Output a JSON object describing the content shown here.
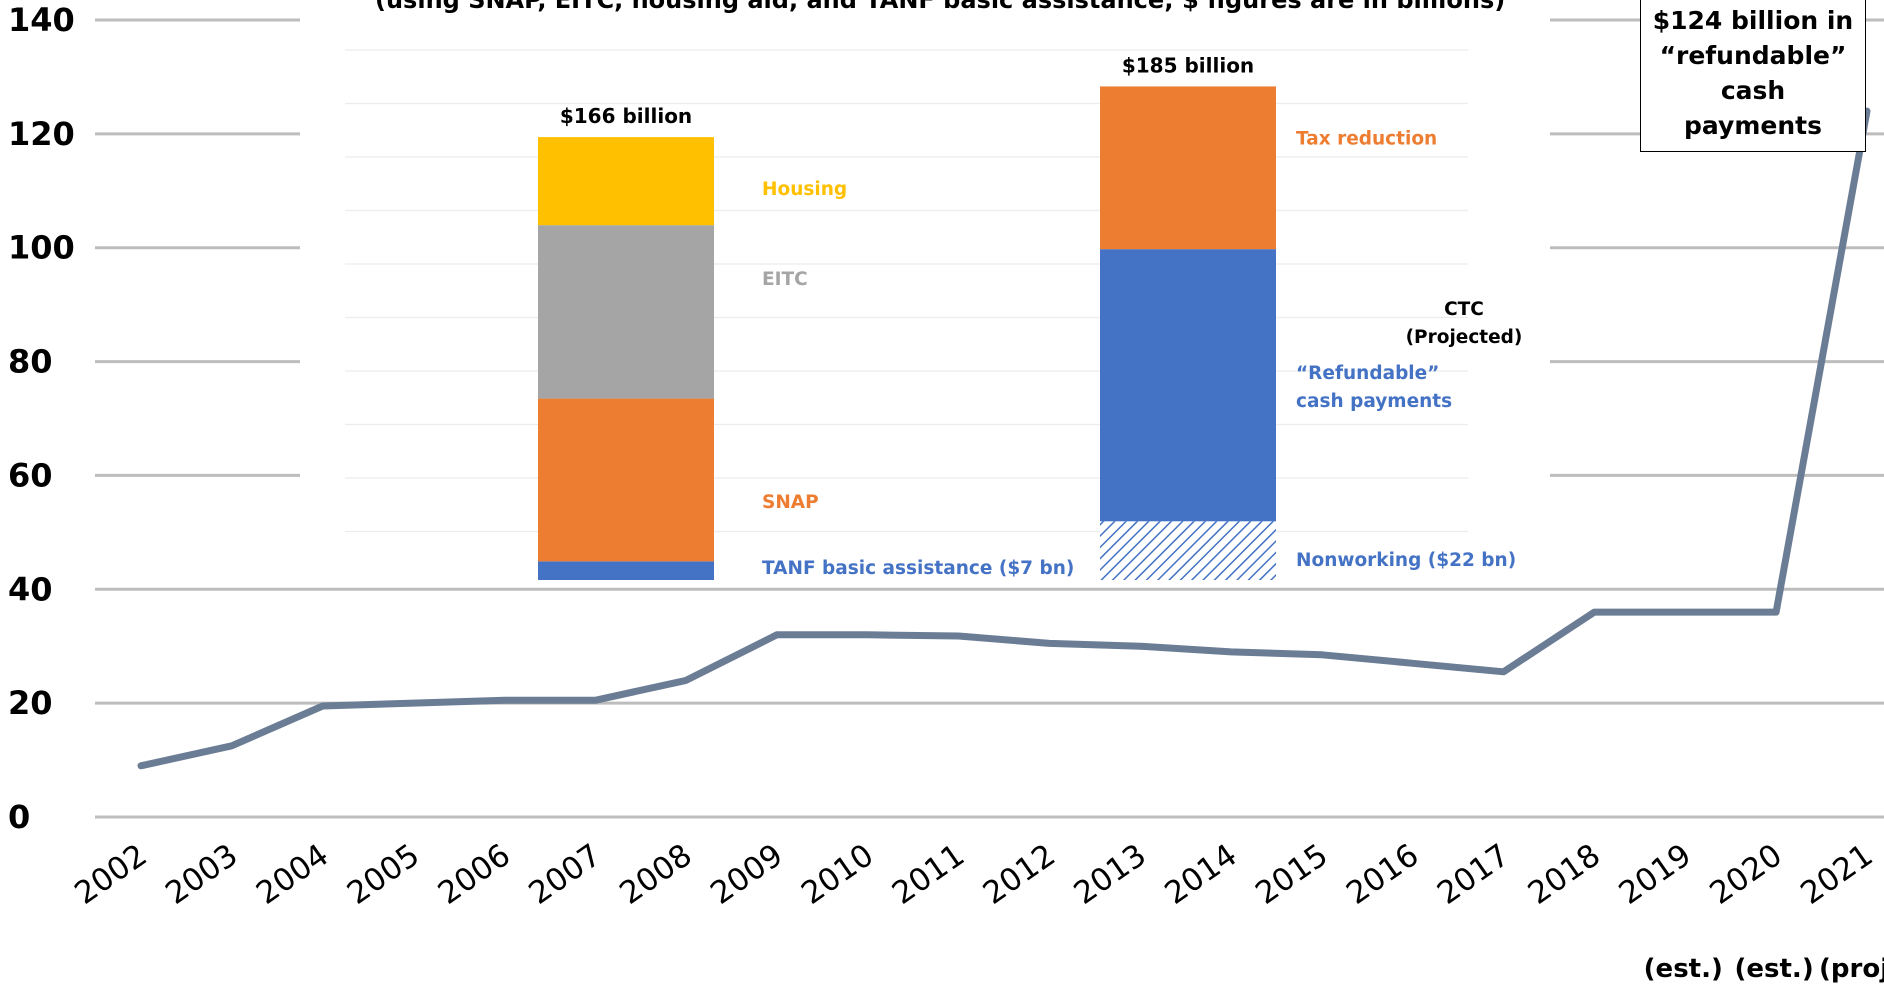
{
  "chart_data": [
    {
      "type": "line",
      "x": [
        "2002",
        "2003",
        "2004",
        "2005",
        "2006",
        "2007",
        "2008",
        "2009",
        "2010",
        "2011",
        "2012",
        "2013",
        "2014",
        "2015",
        "2016",
        "2017",
        "2018",
        "2019",
        "2020",
        "2021"
      ],
      "series": [
        {
          "values": [
            9,
            12.5,
            19.5,
            20,
            20.5,
            20.5,
            24,
            32,
            32,
            31.8,
            30.5,
            30,
            29,
            28.5,
            27,
            25.5,
            36,
            36,
            36,
            124
          ]
        }
      ],
      "x_sublabels": {
        "2019": "(est.)",
        "2020": "(est.)",
        "2021": "(proj.)"
      },
      "yticks": [
        "0",
        "20",
        "40",
        "60",
        "80",
        "100",
        "120",
        "140"
      ],
      "ylim": [
        0,
        140
      ],
      "grid": true,
      "color": "#6b7c95",
      "annotation": [
        "$124 billion in",
        "“refundable”",
        "cash",
        "payments"
      ]
    },
    {
      "type": "bar",
      "stacked": true,
      "title_fragment": "(using SNAP, EITC, housing aid, and TANF basic assistance; $ figures are in billions)",
      "bars": [
        {
          "total_label": "$166 billion",
          "segments": [
            {
              "label": "TANF basic assistance  ($7 bn)",
              "value": 7,
              "color": "#4472c4",
              "label_color": "#4472c4"
            },
            {
              "label": "SNAP",
              "value": 61,
              "color": "#ed7d31",
              "label_color": "#ed7d31"
            },
            {
              "label": "EITC",
              "value": 65,
              "color": "#a5a5a5",
              "label_color": "#a5a5a5"
            },
            {
              "label": "Housing",
              "value": 33,
              "color": "#ffc000",
              "label_color": "#ffc000"
            }
          ]
        },
        {
          "total_label": "$185 billion",
          "group_label": [
            "CTC",
            "(Projected)"
          ],
          "segments": [
            {
              "label": "Nonworking ($22 bn)",
              "value": 22,
              "color": "#4472c4",
              "pattern": "hatch",
              "label_color": "#4472c4"
            },
            {
              "label": "“Refundable” cash payments",
              "label_lines": [
                "“Refundable”",
                "cash payments"
              ],
              "value": 102,
              "color": "#4472c4",
              "label_color": "#4472c4"
            },
            {
              "label": "Tax reduction",
              "value": 61,
              "color": "#ed7d31",
              "label_color": "#ed7d31"
            }
          ]
        }
      ]
    }
  ]
}
